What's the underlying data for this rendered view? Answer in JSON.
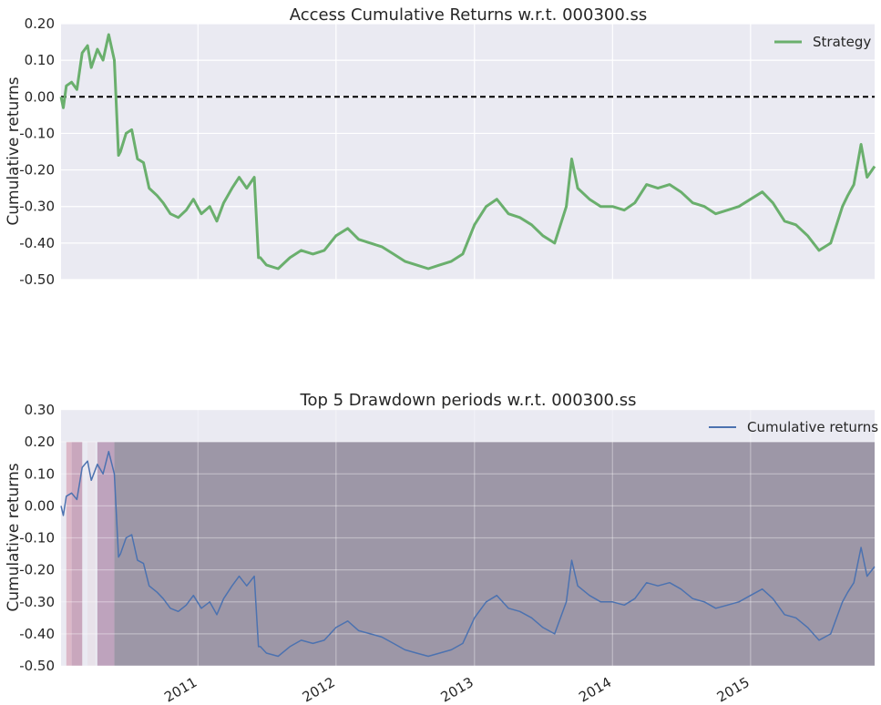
{
  "chart_data": [
    {
      "type": "line",
      "title": "Access Cumulative Returns w.r.t. 000300.ss",
      "ylabel": "Cumulative returns",
      "xlabel": "",
      "ylim": [
        -0.5,
        0.2
      ],
      "yticks": [
        "0.20",
        "0.10",
        "0.00",
        "-0.10",
        "-0.20",
        "-0.30",
        "-0.40",
        "-0.50"
      ],
      "grid": true,
      "legend_position": "top-right",
      "reference_line": {
        "y": 0.0,
        "style": "dashed",
        "color": "#000000"
      },
      "series": [
        {
          "name": "Strategy",
          "color": "#6aaf6d",
          "x": [
            "2010-01-04",
            "2010-01-10",
            "2010-01-18",
            "2010-02-01",
            "2010-02-15",
            "2010-03-01",
            "2010-03-15",
            "2010-03-25",
            "2010-04-10",
            "2010-04-25",
            "2010-05-10",
            "2010-05-25",
            "2010-06-05",
            "2010-06-10",
            "2010-06-25",
            "2010-07-10",
            "2010-07-25",
            "2010-08-10",
            "2010-08-25",
            "2010-09-15",
            "2010-10-01",
            "2010-10-20",
            "2010-11-10",
            "2010-12-01",
            "2010-12-20",
            "2011-01-10",
            "2011-02-01",
            "2011-02-20",
            "2011-03-10",
            "2011-04-01",
            "2011-04-20",
            "2011-05-10",
            "2011-05-30",
            "2011-06-10",
            "2011-06-15",
            "2011-07-01",
            "2011-08-01",
            "2011-09-01",
            "2011-10-01",
            "2011-11-01",
            "2011-12-01",
            "2012-01-01",
            "2012-02-01",
            "2012-03-01",
            "2012-04-01",
            "2012-05-01",
            "2012-06-01",
            "2012-07-01",
            "2012-08-01",
            "2012-09-01",
            "2012-10-01",
            "2012-11-01",
            "2012-12-01",
            "2013-01-01",
            "2013-02-01",
            "2013-03-01",
            "2013-04-01",
            "2013-05-01",
            "2013-06-01",
            "2013-07-01",
            "2013-08-01",
            "2013-09-01",
            "2013-09-15",
            "2013-10-01",
            "2013-11-01",
            "2013-12-01",
            "2014-01-01",
            "2014-02-01",
            "2014-03-01",
            "2014-04-01",
            "2014-05-01",
            "2014-06-01",
            "2014-07-01",
            "2014-08-01",
            "2014-09-01",
            "2014-10-01",
            "2014-11-01",
            "2014-12-01",
            "2015-01-01",
            "2015-02-01",
            "2015-03-01",
            "2015-04-01",
            "2015-05-01",
            "2015-06-01",
            "2015-07-01",
            "2015-08-01",
            "2015-09-01",
            "2015-09-15",
            "2015-10-01",
            "2015-10-20",
            "2015-11-05",
            "2015-11-25"
          ],
          "y": [
            0.0,
            -0.03,
            0.03,
            0.04,
            0.02,
            0.12,
            0.14,
            0.08,
            0.13,
            0.1,
            0.17,
            0.1,
            -0.16,
            -0.15,
            -0.1,
            -0.09,
            -0.17,
            -0.18,
            -0.25,
            -0.27,
            -0.29,
            -0.32,
            -0.33,
            -0.31,
            -0.28,
            -0.32,
            -0.3,
            -0.34,
            -0.29,
            -0.25,
            -0.22,
            -0.25,
            -0.22,
            -0.44,
            -0.44,
            -0.46,
            -0.47,
            -0.44,
            -0.42,
            -0.43,
            -0.42,
            -0.38,
            -0.36,
            -0.39,
            -0.4,
            -0.41,
            -0.43,
            -0.45,
            -0.46,
            -0.47,
            -0.46,
            -0.45,
            -0.43,
            -0.35,
            -0.3,
            -0.28,
            -0.32,
            -0.33,
            -0.35,
            -0.38,
            -0.4,
            -0.3,
            -0.17,
            -0.25,
            -0.28,
            -0.3,
            -0.3,
            -0.31,
            -0.29,
            -0.24,
            -0.25,
            -0.24,
            -0.26,
            -0.29,
            -0.3,
            -0.32,
            -0.31,
            -0.3,
            -0.28,
            -0.26,
            -0.29,
            -0.34,
            -0.35,
            -0.38,
            -0.42,
            -0.4,
            -0.3,
            -0.27,
            -0.24,
            -0.13,
            -0.22,
            -0.19
          ]
        }
      ]
    },
    {
      "type": "line",
      "title": "Top 5 Drawdown periods w.r.t. 000300.ss",
      "ylabel": "Cumulative returns",
      "xlabel": "",
      "ylim": [
        -0.5,
        0.3
      ],
      "yticks": [
        "0.30",
        "0.20",
        "0.10",
        "0.00",
        "-0.10",
        "-0.20",
        "-0.30",
        "-0.40",
        "-0.50"
      ],
      "xticks": [
        "2011",
        "2012",
        "2013",
        "2014",
        "2015"
      ],
      "grid": true,
      "legend_position": "top-right",
      "shaded_band_top": 0.2,
      "drawdown_periods": [
        {
          "start": "2010-01-18",
          "end": "2010-02-01",
          "color": "#dcb8c8"
        },
        {
          "start": "2010-02-01",
          "end": "2010-03-01",
          "color": "#c9a7bd"
        },
        {
          "start": "2010-03-15",
          "end": "2010-04-05",
          "color": "#e8e2ea"
        },
        {
          "start": "2010-04-10",
          "end": "2010-05-25",
          "color": "#bea3bd"
        },
        {
          "start": "2010-05-25",
          "end": "2015-11-25",
          "color": "#9d97a7"
        }
      ],
      "series": [
        {
          "name": "Cumulative returns",
          "color": "#4c72b0",
          "same_as": "Strategy"
        }
      ]
    }
  ]
}
